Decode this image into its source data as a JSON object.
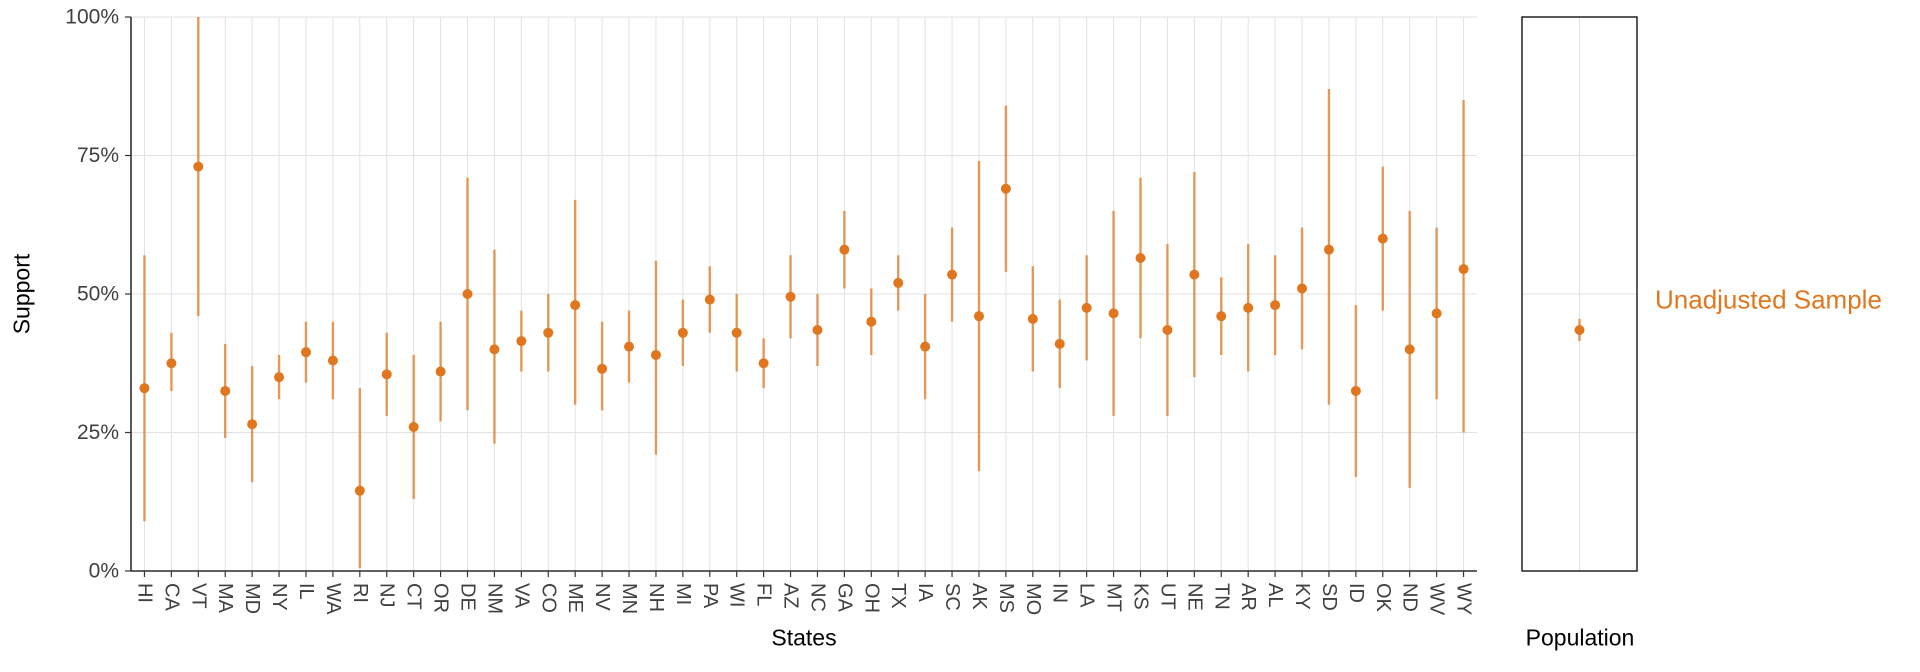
{
  "chart_data": {
    "type": "pointrange",
    "title": "",
    "xlabel": "States",
    "ylabel": "Support",
    "legend": "Unadjusted Sample",
    "ylim": [
      0,
      100
    ],
    "yticks": [
      0,
      25,
      50,
      75,
      100
    ],
    "ytick_labels": [
      "0%",
      "25%",
      "50%",
      "75%",
      "100%"
    ],
    "grid": true,
    "grid_color": "#E2E2E2",
    "point_color": "#E0771F",
    "bar_color": "#E0771F",
    "text_color": "#404040",
    "states": [
      "HI",
      "CA",
      "VT",
      "MA",
      "MD",
      "NY",
      "IL",
      "WA",
      "RI",
      "NJ",
      "CT",
      "OR",
      "DE",
      "NM",
      "VA",
      "CO",
      "ME",
      "NV",
      "MN",
      "NH",
      "MI",
      "PA",
      "WI",
      "FL",
      "AZ",
      "NC",
      "GA",
      "OH",
      "TX",
      "IA",
      "SC",
      "AK",
      "MS",
      "MO",
      "IN",
      "LA",
      "MT",
      "KS",
      "UT",
      "NE",
      "TN",
      "AR",
      "AL",
      "KY",
      "SD",
      "ID",
      "OK",
      "ND",
      "WV",
      "WY"
    ],
    "points": [
      33,
      37.5,
      73,
      32.5,
      26.5,
      35,
      39.5,
      38,
      14.5,
      35.5,
      26,
      36,
      50,
      40,
      41.5,
      43,
      48,
      36.5,
      40.5,
      39,
      43,
      49,
      43,
      37.5,
      49.5,
      43.5,
      58,
      45,
      52,
      40.5,
      53.5,
      46,
      69,
      45.5,
      41,
      47.5,
      46.5,
      56.5,
      43.5,
      53.5,
      46,
      47.5,
      48,
      51,
      58,
      32.5,
      60,
      40,
      46.5,
      54.5
    ],
    "lower": [
      9,
      32.5,
      46,
      24,
      16,
      31,
      34,
      31,
      0.5,
      28,
      13,
      27,
      29,
      23,
      36,
      36,
      30,
      29,
      34,
      21,
      37,
      43,
      36,
      33,
      42,
      37,
      51,
      39,
      47,
      31,
      45,
      18,
      54,
      36,
      33,
      38,
      28,
      42,
      28,
      35,
      39,
      36,
      39,
      40,
      30,
      17,
      47,
      15,
      31,
      25
    ],
    "upper": [
      57,
      43,
      100,
      41,
      37,
      39,
      45,
      45,
      33,
      43,
      39,
      45,
      71,
      58,
      47,
      50,
      67,
      45,
      47,
      56,
      49,
      55,
      50,
      42,
      57,
      50,
      65,
      51,
      57,
      50,
      62,
      74,
      84,
      55,
      49,
      57,
      65,
      71,
      59,
      72,
      53,
      59,
      57,
      62,
      87,
      48,
      73,
      65,
      62,
      85
    ],
    "population_panel": {
      "label": "Population",
      "point": 43.5,
      "lower": 41.5,
      "upper": 45.5
    }
  }
}
